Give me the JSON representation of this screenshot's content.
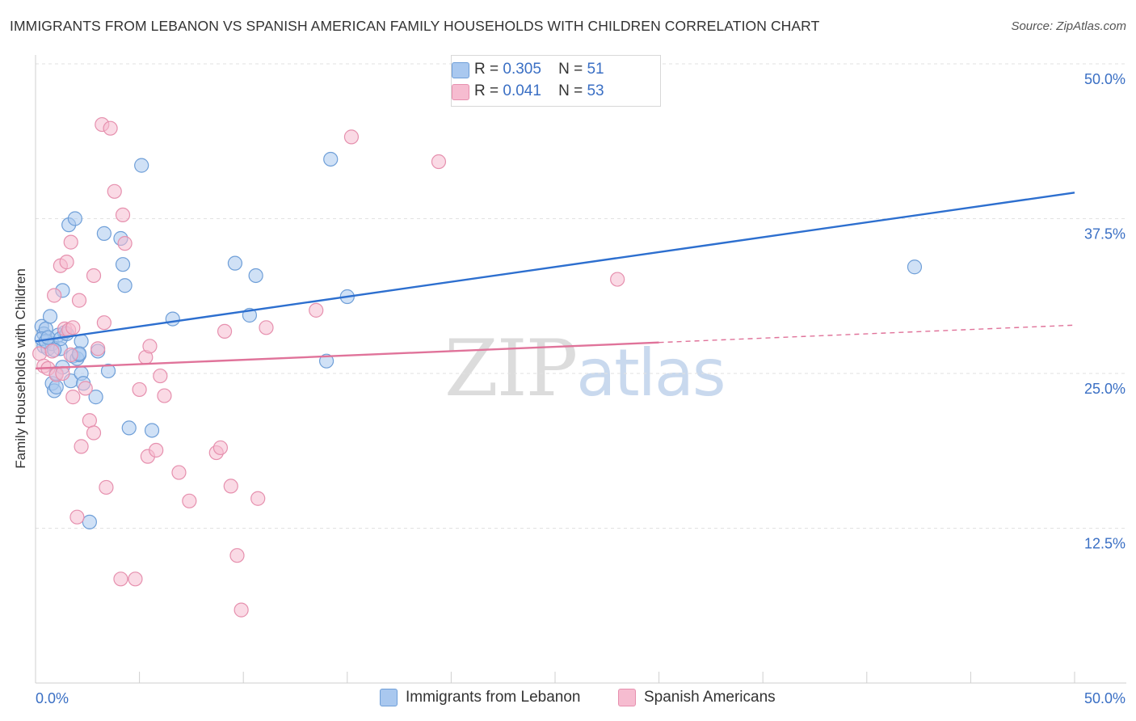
{
  "header": {
    "title": "IMMIGRANTS FROM LEBANON VS SPANISH AMERICAN FAMILY HOUSEHOLDS WITH CHILDREN CORRELATION CHART",
    "source": "Source: ZipAtlas.com"
  },
  "watermark": {
    "zip": "ZIP",
    "atlas": "atlas"
  },
  "legend": {
    "r_label": "R =",
    "n_label": "N =",
    "series_a": {
      "r": "0.305",
      "n": "51"
    },
    "series_b": {
      "r": "0.041",
      "n": "53"
    }
  },
  "colors": {
    "blue_fill": "#a9c8ef",
    "blue_stroke": "#6f9fd8",
    "blue_line": "#2d6fcf",
    "pink_fill": "#f6bcd0",
    "pink_stroke": "#e690ae",
    "pink_line": "#e0739a",
    "tick_label": "#3a6fc4"
  },
  "chart_data": {
    "type": "scatter",
    "xlabel": "",
    "ylabel": "Family Households with Children",
    "xlim": [
      0,
      50
    ],
    "ylim": [
      0,
      50
    ],
    "x_tick_labels": [
      "0.0%",
      "50.0%"
    ],
    "y_ticks": [
      12.5,
      25.0,
      37.5,
      50.0
    ],
    "y_tick_labels": [
      "12.5%",
      "25.0%",
      "37.5%",
      "50.0%"
    ],
    "grid": "horizontal dashed",
    "legend_position": "top-center",
    "series": [
      {
        "name": "Immigrants from Lebanon",
        "color": "blue",
        "trend": {
          "x": [
            0,
            50
          ],
          "y": [
            27.6,
            39.6
          ]
        },
        "points": [
          [
            0.3,
            28.8
          ],
          [
            0.4,
            28.2
          ],
          [
            0.4,
            27.2
          ],
          [
            0.5,
            28.6
          ],
          [
            0.6,
            27.0
          ],
          [
            0.7,
            29.6
          ],
          [
            0.8,
            27.4
          ],
          [
            0.8,
            24.2
          ],
          [
            0.9,
            23.6
          ],
          [
            1.0,
            25.0
          ],
          [
            1.0,
            23.9
          ],
          [
            1.1,
            28.1
          ],
          [
            1.2,
            27.0
          ],
          [
            1.3,
            25.5
          ],
          [
            1.3,
            31.7
          ],
          [
            1.4,
            28.3
          ],
          [
            1.6,
            37.0
          ],
          [
            1.7,
            24.4
          ],
          [
            1.8,
            26.4
          ],
          [
            1.9,
            37.5
          ],
          [
            2.0,
            26.2
          ],
          [
            2.1,
            26.5
          ],
          [
            2.2,
            27.6
          ],
          [
            2.2,
            25.0
          ],
          [
            2.3,
            24.2
          ],
          [
            2.6,
            13.0
          ],
          [
            2.9,
            23.1
          ],
          [
            3.0,
            26.8
          ],
          [
            3.3,
            36.3
          ],
          [
            3.5,
            25.2
          ],
          [
            4.1,
            35.9
          ],
          [
            4.2,
            33.8
          ],
          [
            4.3,
            32.1
          ],
          [
            4.5,
            20.6
          ],
          [
            5.1,
            41.8
          ],
          [
            5.6,
            20.4
          ],
          [
            6.6,
            29.4
          ],
          [
            9.6,
            33.9
          ],
          [
            10.3,
            29.7
          ],
          [
            10.6,
            32.9
          ],
          [
            14.0,
            26.0
          ],
          [
            14.2,
            42.3
          ],
          [
            15.0,
            31.2
          ],
          [
            42.3,
            33.6
          ],
          [
            0.3,
            27.8
          ],
          [
            0.5,
            27.6
          ],
          [
            0.6,
            27.9
          ],
          [
            1.2,
            27.8
          ],
          [
            1.5,
            28.2
          ],
          [
            2.1,
            26.6
          ],
          [
            0.9,
            26.9
          ]
        ]
      },
      {
        "name": "Spanish Americans",
        "color": "pink",
        "trend": {
          "x": [
            0,
            30
          ],
          "y": [
            25.4,
            27.5
          ]
        },
        "trend_dashed": {
          "x": [
            30,
            50
          ],
          "y": [
            27.5,
            28.9
          ]
        },
        "points": [
          [
            0.2,
            26.6
          ],
          [
            0.4,
            25.6
          ],
          [
            0.6,
            25.4
          ],
          [
            0.9,
            31.3
          ],
          [
            1.0,
            24.9
          ],
          [
            1.2,
            33.7
          ],
          [
            1.3,
            25.0
          ],
          [
            1.4,
            28.6
          ],
          [
            1.5,
            34.0
          ],
          [
            1.6,
            28.5
          ],
          [
            1.7,
            35.6
          ],
          [
            1.8,
            28.7
          ],
          [
            1.8,
            23.1
          ],
          [
            2.0,
            13.4
          ],
          [
            2.1,
            30.9
          ],
          [
            2.2,
            19.1
          ],
          [
            2.4,
            23.8
          ],
          [
            2.6,
            21.2
          ],
          [
            2.8,
            20.2
          ],
          [
            2.8,
            32.9
          ],
          [
            3.0,
            27.0
          ],
          [
            3.2,
            45.1
          ],
          [
            3.3,
            29.1
          ],
          [
            3.4,
            15.8
          ],
          [
            3.6,
            44.8
          ],
          [
            3.8,
            39.7
          ],
          [
            4.1,
            8.4
          ],
          [
            4.2,
            37.8
          ],
          [
            4.3,
            35.5
          ],
          [
            4.8,
            8.4
          ],
          [
            5.0,
            23.7
          ],
          [
            5.3,
            26.3
          ],
          [
            5.4,
            18.3
          ],
          [
            5.5,
            27.2
          ],
          [
            5.8,
            18.8
          ],
          [
            6.0,
            24.8
          ],
          [
            6.2,
            23.2
          ],
          [
            6.9,
            17.0
          ],
          [
            7.4,
            14.7
          ],
          [
            8.7,
            18.6
          ],
          [
            8.9,
            19.0
          ],
          [
            9.1,
            28.4
          ],
          [
            9.4,
            15.9
          ],
          [
            9.7,
            10.3
          ],
          [
            9.9,
            5.9
          ],
          [
            10.7,
            14.9
          ],
          [
            11.1,
            28.7
          ],
          [
            13.5,
            30.1
          ],
          [
            15.2,
            44.1
          ],
          [
            19.4,
            42.1
          ],
          [
            28.0,
            32.6
          ],
          [
            1.7,
            26.5
          ],
          [
            0.8,
            26.8
          ]
        ]
      }
    ]
  },
  "bottom_legend": {
    "a": "Immigrants from Lebanon",
    "b": "Spanish Americans"
  }
}
